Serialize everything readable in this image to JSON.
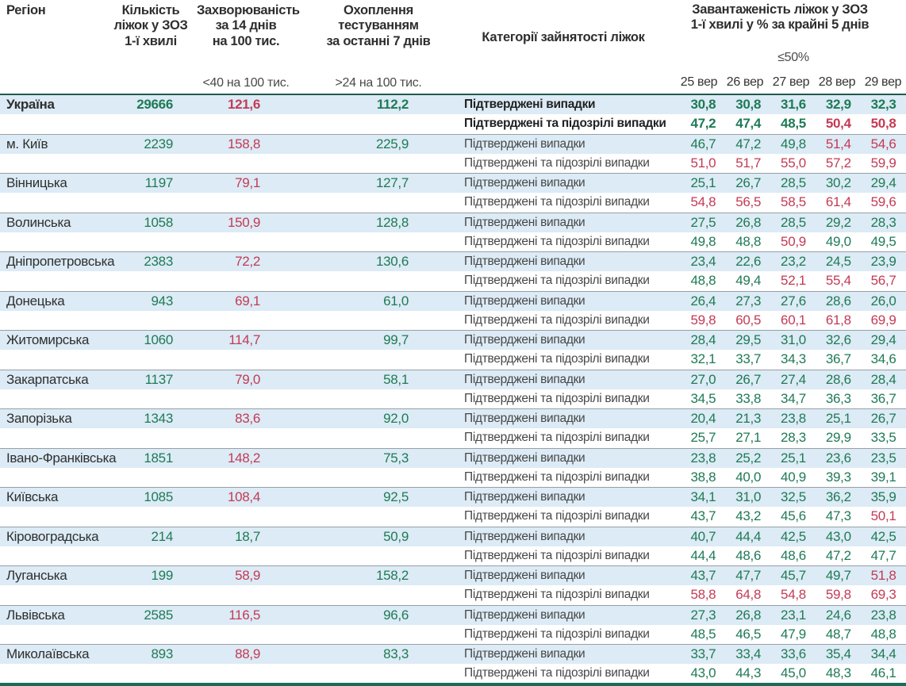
{
  "header": {
    "region_label": "Регіон",
    "beds_label": "Кількість\nліжок у ЗОЗ\n1-ї хвилі",
    "incidence_label": "Захворюваність\nза 14 днів\nна 100 тис.",
    "testing_label": "Охоплення\nтестуванням\nза останні 7 днів",
    "category_label": "Категорії зайнятості ліжок",
    "occupancy_label": "Завантаженість ліжок у ЗОЗ\n1-ї хвилі у % за крайні 5 днів",
    "incidence_threshold": "<40 на 100 тис.",
    "testing_threshold": ">24 на 100 тис.",
    "occupancy_threshold": "≤50%"
  },
  "colors": {
    "green": "#1f7a55",
    "red": "#c43a54",
    "row_blue": "#dcebf5",
    "separator": "#97a0a4",
    "teal_top_border": "#21584d",
    "teal_bottom_bar": "#1a6b5a"
  },
  "chart_data": {
    "type": "table",
    "title": "Завантаженість ліжок у ЗОЗ 1-ї хвилі у % за крайні 5 днів",
    "dates": [
      "25 вер",
      "26 вер",
      "27 вер",
      "28 вер",
      "29 вер"
    ],
    "row_labels": {
      "confirmed": "Підтверджені випадки",
      "suspected": "Підтверджені та підозрілі випадки"
    },
    "rules": {
      "incidence_red_from": 40,
      "testing_green_above": 24,
      "occupancy_red_above": 50
    },
    "regions": [
      {
        "name": "Україна",
        "bold": true,
        "beds": "29666",
        "incidence": "121,6",
        "testing": "112,2",
        "confirmed": [
          "30,8",
          "30,8",
          "31,6",
          "32,9",
          "32,3"
        ],
        "confirmed_suspected": [
          "47,2",
          "47,4",
          "48,5",
          "50,4",
          "50,8"
        ]
      },
      {
        "name": "м. Київ",
        "bold": false,
        "beds": "2239",
        "incidence": "158,8",
        "testing": "225,9",
        "confirmed": [
          "46,7",
          "47,2",
          "49,8",
          "51,4",
          "54,6"
        ],
        "confirmed_suspected": [
          "51,0",
          "51,7",
          "55,0",
          "57,2",
          "59,9"
        ]
      },
      {
        "name": "Вінницька",
        "bold": false,
        "beds": "1197",
        "incidence": "79,1",
        "testing": "127,7",
        "confirmed": [
          "25,1",
          "26,7",
          "28,5",
          "30,2",
          "29,4"
        ],
        "confirmed_suspected": [
          "54,8",
          "56,5",
          "58,5",
          "61,4",
          "59,6"
        ]
      },
      {
        "name": "Волинська",
        "bold": false,
        "beds": "1058",
        "incidence": "150,9",
        "testing": "128,8",
        "confirmed": [
          "27,5",
          "26,8",
          "28,5",
          "29,2",
          "28,3"
        ],
        "confirmed_suspected": [
          "49,8",
          "48,8",
          "50,9",
          "49,0",
          "49,5"
        ]
      },
      {
        "name": "Дніпропетровська",
        "bold": false,
        "beds": "2383",
        "incidence": "72,2",
        "testing": "130,6",
        "confirmed": [
          "23,4",
          "22,6",
          "23,2",
          "24,5",
          "23,9"
        ],
        "confirmed_suspected": [
          "48,8",
          "49,4",
          "52,1",
          "55,4",
          "56,7"
        ]
      },
      {
        "name": "Донецька",
        "bold": false,
        "beds": "943",
        "incidence": "69,1",
        "testing": "61,0",
        "confirmed": [
          "26,4",
          "27,3",
          "27,6",
          "28,6",
          "26,0"
        ],
        "confirmed_suspected": [
          "59,8",
          "60,5",
          "60,1",
          "61,8",
          "69,9"
        ]
      },
      {
        "name": "Житомирська",
        "bold": false,
        "beds": "1060",
        "incidence": "114,7",
        "testing": "99,7",
        "confirmed": [
          "28,4",
          "29,5",
          "31,0",
          "32,6",
          "29,4"
        ],
        "confirmed_suspected": [
          "32,1",
          "33,7",
          "34,3",
          "36,7",
          "34,6"
        ]
      },
      {
        "name": "Закарпатська",
        "bold": false,
        "beds": "1137",
        "incidence": "79,0",
        "testing": "58,1",
        "confirmed": [
          "27,0",
          "26,7",
          "27,4",
          "28,6",
          "28,4"
        ],
        "confirmed_suspected": [
          "34,5",
          "33,8",
          "34,7",
          "36,3",
          "36,7"
        ]
      },
      {
        "name": "Запорізька",
        "bold": false,
        "beds": "1343",
        "incidence": "83,6",
        "testing": "92,0",
        "confirmed": [
          "20,4",
          "21,3",
          "23,8",
          "25,1",
          "26,7"
        ],
        "confirmed_suspected": [
          "25,7",
          "27,1",
          "28,3",
          "29,9",
          "33,5"
        ]
      },
      {
        "name": "Івано-Франківська",
        "bold": false,
        "beds": "1851",
        "incidence": "148,2",
        "testing": "75,3",
        "confirmed": [
          "23,8",
          "25,2",
          "25,1",
          "23,6",
          "23,5"
        ],
        "confirmed_suspected": [
          "38,8",
          "40,0",
          "40,9",
          "39,3",
          "39,1"
        ]
      },
      {
        "name": "Київська",
        "bold": false,
        "beds": "1085",
        "incidence": "108,4",
        "testing": "92,5",
        "confirmed": [
          "34,1",
          "31,0",
          "32,5",
          "36,2",
          "35,9"
        ],
        "confirmed_suspected": [
          "43,7",
          "43,2",
          "45,6",
          "47,3",
          "50,1"
        ]
      },
      {
        "name": "Кіровоградська",
        "bold": false,
        "beds": "214",
        "incidence": "18,7",
        "testing": "50,9",
        "confirmed": [
          "40,7",
          "44,4",
          "42,5",
          "43,0",
          "42,5"
        ],
        "confirmed_suspected": [
          "44,4",
          "48,6",
          "48,6",
          "47,2",
          "47,7"
        ]
      },
      {
        "name": "Луганська",
        "bold": false,
        "beds": "199",
        "incidence": "58,9",
        "testing": "158,2",
        "confirmed": [
          "43,7",
          "47,7",
          "45,7",
          "49,7",
          "51,8"
        ],
        "confirmed_suspected": [
          "58,8",
          "64,8",
          "54,8",
          "59,8",
          "69,3"
        ]
      },
      {
        "name": "Львівська",
        "bold": false,
        "beds": "2585",
        "incidence": "116,5",
        "testing": "96,6",
        "confirmed": [
          "27,3",
          "26,8",
          "23,1",
          "24,6",
          "23,8"
        ],
        "confirmed_suspected": [
          "48,5",
          "46,5",
          "47,9",
          "48,7",
          "48,8"
        ]
      },
      {
        "name": "Миколаївська",
        "bold": false,
        "beds": "893",
        "incidence": "88,9",
        "testing": "83,3",
        "confirmed": [
          "33,7",
          "33,4",
          "33,6",
          "35,4",
          "34,4"
        ],
        "confirmed_suspected": [
          "43,0",
          "44,3",
          "45,0",
          "48,3",
          "46,1"
        ]
      }
    ]
  }
}
